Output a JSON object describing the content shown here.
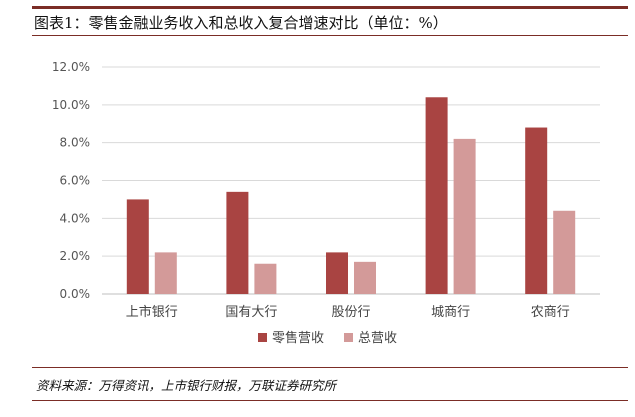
{
  "header": {
    "title": "图表1：零售金融业务收入和总收入复合增速对比（单位：%）"
  },
  "footer": {
    "source": "资料来源：万得资讯，上市银行财报，万联证券研究所"
  },
  "colors": {
    "retail": "#a94442",
    "total": "#d39a99",
    "accent": "#7b2d26"
  },
  "chart_data": {
    "type": "bar",
    "categories": [
      "上市银行",
      "国有大行",
      "股份行",
      "城商行",
      "农商行"
    ],
    "series": [
      {
        "name": "零售营收",
        "values": [
          5.0,
          5.4,
          2.2,
          10.4,
          8.8
        ]
      },
      {
        "name": "总营收",
        "values": [
          2.2,
          1.6,
          1.7,
          8.2,
          4.4
        ]
      }
    ],
    "yticks": [
      "0.0%",
      "2.0%",
      "4.0%",
      "6.0%",
      "8.0%",
      "10.0%",
      "12.0%"
    ],
    "ylim": [
      0,
      12
    ],
    "grid": true,
    "legend_position": "bottom"
  }
}
